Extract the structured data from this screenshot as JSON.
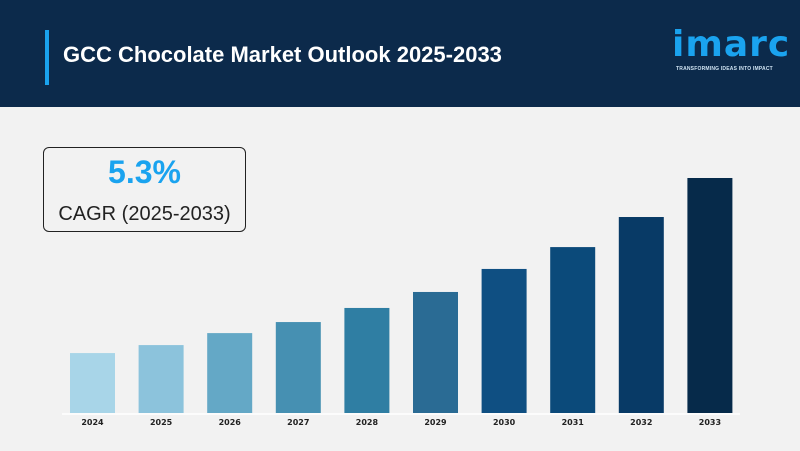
{
  "header": {
    "title": "GCC Chocolate Market Outlook 2025-2033",
    "logo_text": "imarc",
    "logo_tagline": "TRANSFORMING IDEAS INTO IMPACT"
  },
  "cagr": {
    "value": "5.3%",
    "label": "CAGR (2025-2033)"
  },
  "colors": {
    "header_bg": "#0c2a4b",
    "accent": "#1aa3ef",
    "background": "#f2f2f2"
  },
  "chart_data": {
    "type": "bar",
    "title": "",
    "xlabel": "",
    "ylabel": "",
    "categories": [
      "2024",
      "2025",
      "2026",
      "2027",
      "2028",
      "2029",
      "2030",
      "2031",
      "2032",
      "2033"
    ],
    "values": [
      25.5,
      28.9,
      34,
      38.7,
      44.7,
      51.5,
      61.3,
      70.6,
      83.4,
      100
    ],
    "ylim": [
      0,
      100
    ],
    "grid": false,
    "bar_colors": [
      "#a8d5e8",
      "#8cc3dc",
      "#64a8c6",
      "#4690b2",
      "#2f7ea3",
      "#2a6b94",
      "#0f4f82",
      "#0b4a7a",
      "#083a66",
      "#062a4a"
    ]
  }
}
